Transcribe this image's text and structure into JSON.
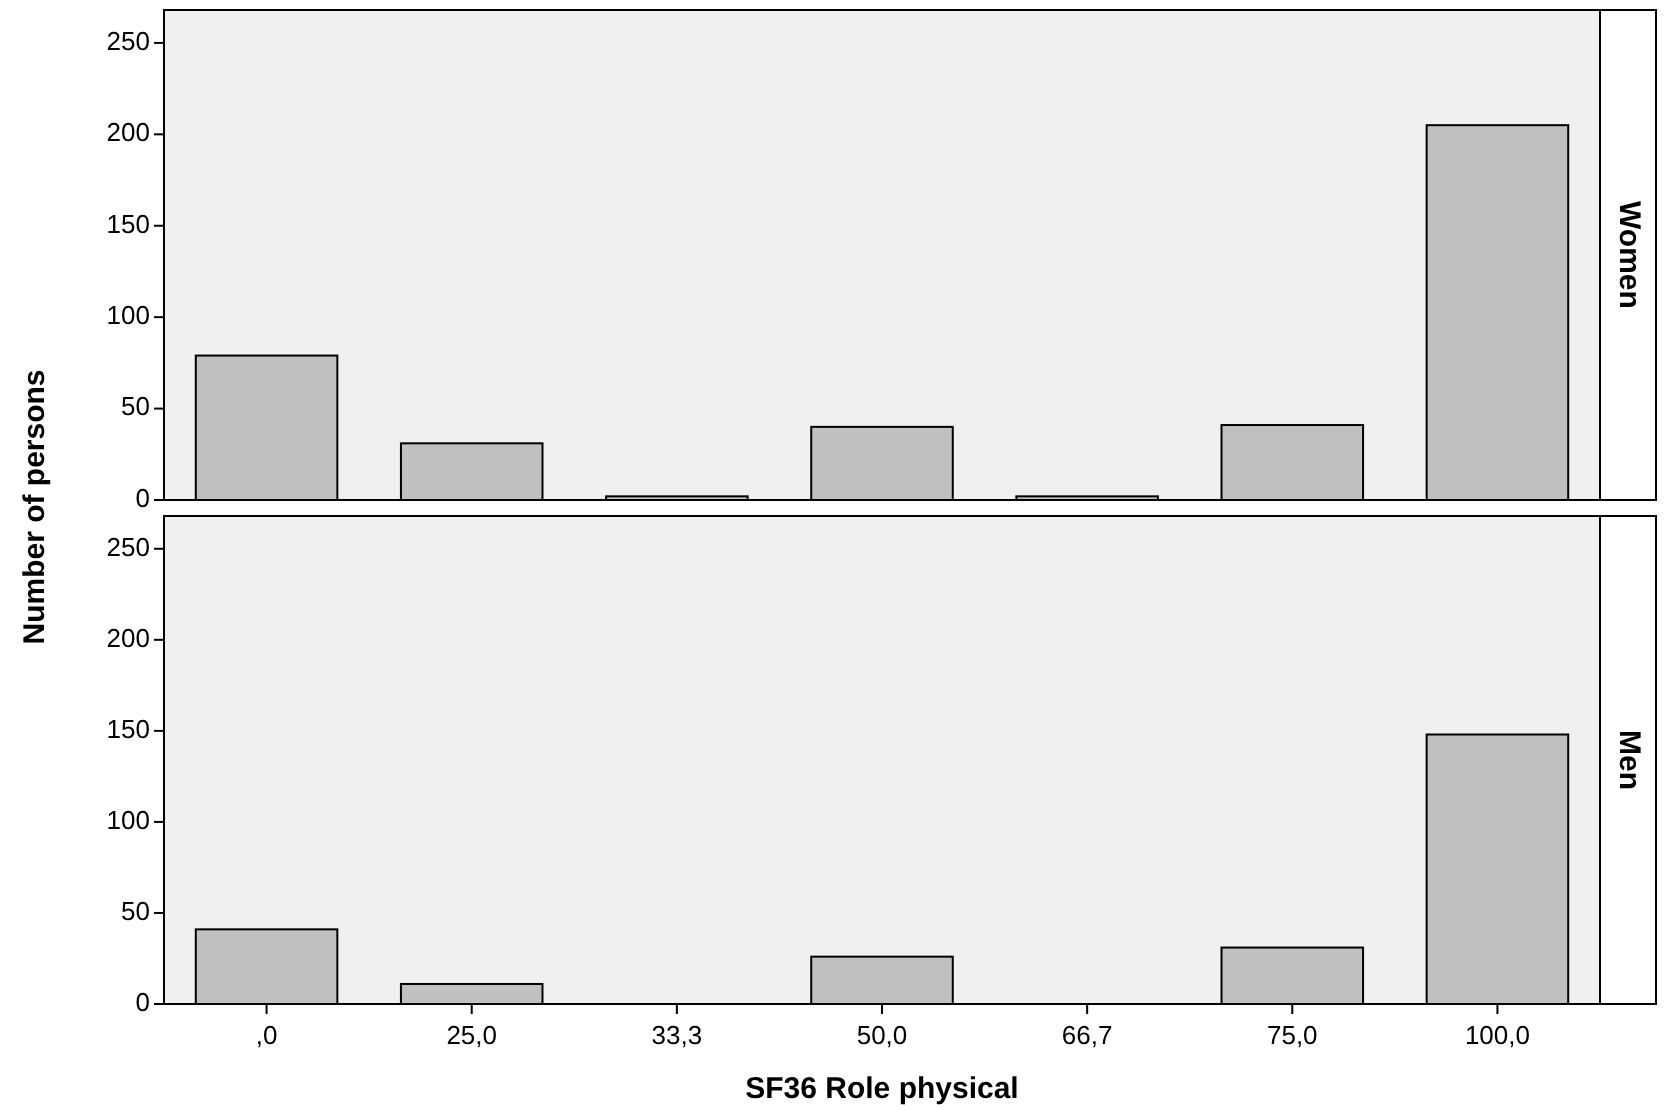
{
  "chart_data": [
    {
      "type": "bar",
      "title": "Women",
      "ylabel": "Number of persons",
      "categories": [
        ",0",
        "25,0",
        "33,3",
        "50,0",
        "66,7",
        "75,0",
        "100,0"
      ],
      "values": [
        79,
        31,
        2,
        40,
        2,
        41,
        205
      ],
      "color": "#c0c0c0",
      "ylim": [
        0,
        268
      ],
      "yticks": [
        0,
        50,
        100,
        150,
        200,
        250
      ],
      "tick_labels": "y",
      "grid": false
    },
    {
      "type": "bar",
      "title": "Men",
      "xlabel": "SF36 Role physical",
      "categories": [
        ",0",
        "25,0",
        "33,3",
        "50,0",
        "66,7",
        "75,0",
        "100,0"
      ],
      "values": [
        41,
        11,
        0,
        26,
        0,
        31,
        148
      ],
      "color": "#c0c0c0",
      "ylim": [
        0,
        268
      ],
      "yticks": [
        0,
        50,
        100,
        150,
        200,
        250
      ],
      "grid": false
    }
  ]
}
